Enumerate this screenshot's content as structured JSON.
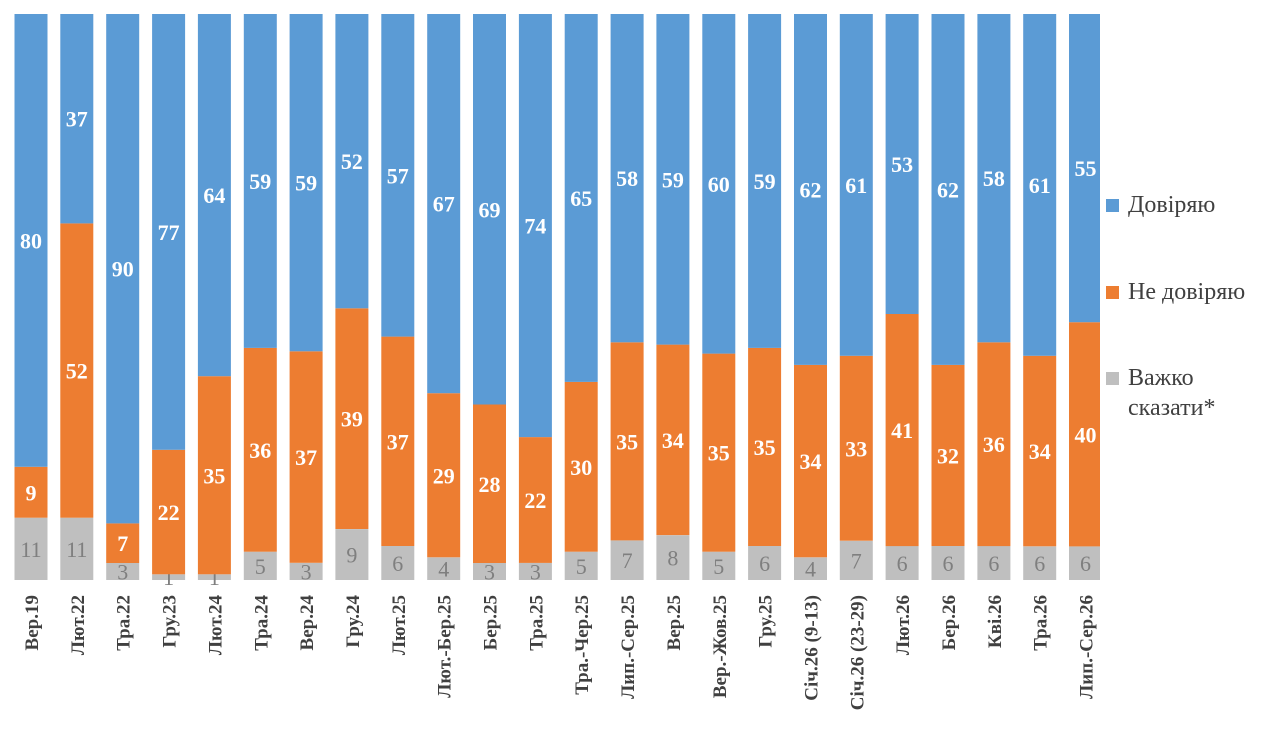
{
  "chart_data": {
    "type": "bar",
    "stacked": true,
    "ylim": [
      0,
      100
    ],
    "grid": false,
    "legend_position": "right",
    "categories": [
      "Вер.19",
      "Лют.22",
      "Тра.22",
      "Гру.23",
      "Лют.24",
      "Тра.24",
      "Вер.24",
      "Гру.24",
      "Лют.25",
      "Лют.-Бер.25",
      "Бер.25",
      "Тра.25",
      "Тра.-Чер.25",
      "Лип.-Сер.25",
      "Вер.25",
      "Вер.-Жов.25",
      "Гру.25",
      "Січ.26 (9-13)",
      "Січ.26 (23-29)",
      "Лют.26",
      "Бер.26",
      "Кві.26",
      "Тра.26",
      "Лип.-Сер.26"
    ],
    "series": [
      {
        "name": "Важко сказати*",
        "color": "#bfbfbf",
        "label_color": "#7f7f7f",
        "values": [
          11,
          11,
          3,
          1,
          1,
          5,
          3,
          9,
          6,
          4,
          3,
          3,
          5,
          7,
          8,
          5,
          6,
          4,
          7,
          6,
          6,
          6,
          6,
          6
        ]
      },
      {
        "name": "Не довіряю",
        "color": "#ed7d31",
        "label_color": "#ffffff",
        "values": [
          9,
          52,
          7,
          22,
          35,
          36,
          37,
          39,
          37,
          29,
          28,
          22,
          30,
          35,
          34,
          35,
          35,
          34,
          33,
          41,
          32,
          36,
          34,
          40
        ]
      },
      {
        "name": "Довіряю",
        "color": "#5b9bd5",
        "label_color": "#ffffff",
        "values": [
          80,
          37,
          90,
          77,
          64,
          59,
          59,
          52,
          57,
          67,
          69,
          74,
          65,
          58,
          59,
          60,
          59,
          62,
          61,
          53,
          62,
          58,
          61,
          55
        ]
      }
    ]
  },
  "legend": {
    "trust": "Довіряю",
    "distrust": "Не довіряю",
    "hard_line1": "Важко",
    "hard_line2": "сказати*"
  }
}
